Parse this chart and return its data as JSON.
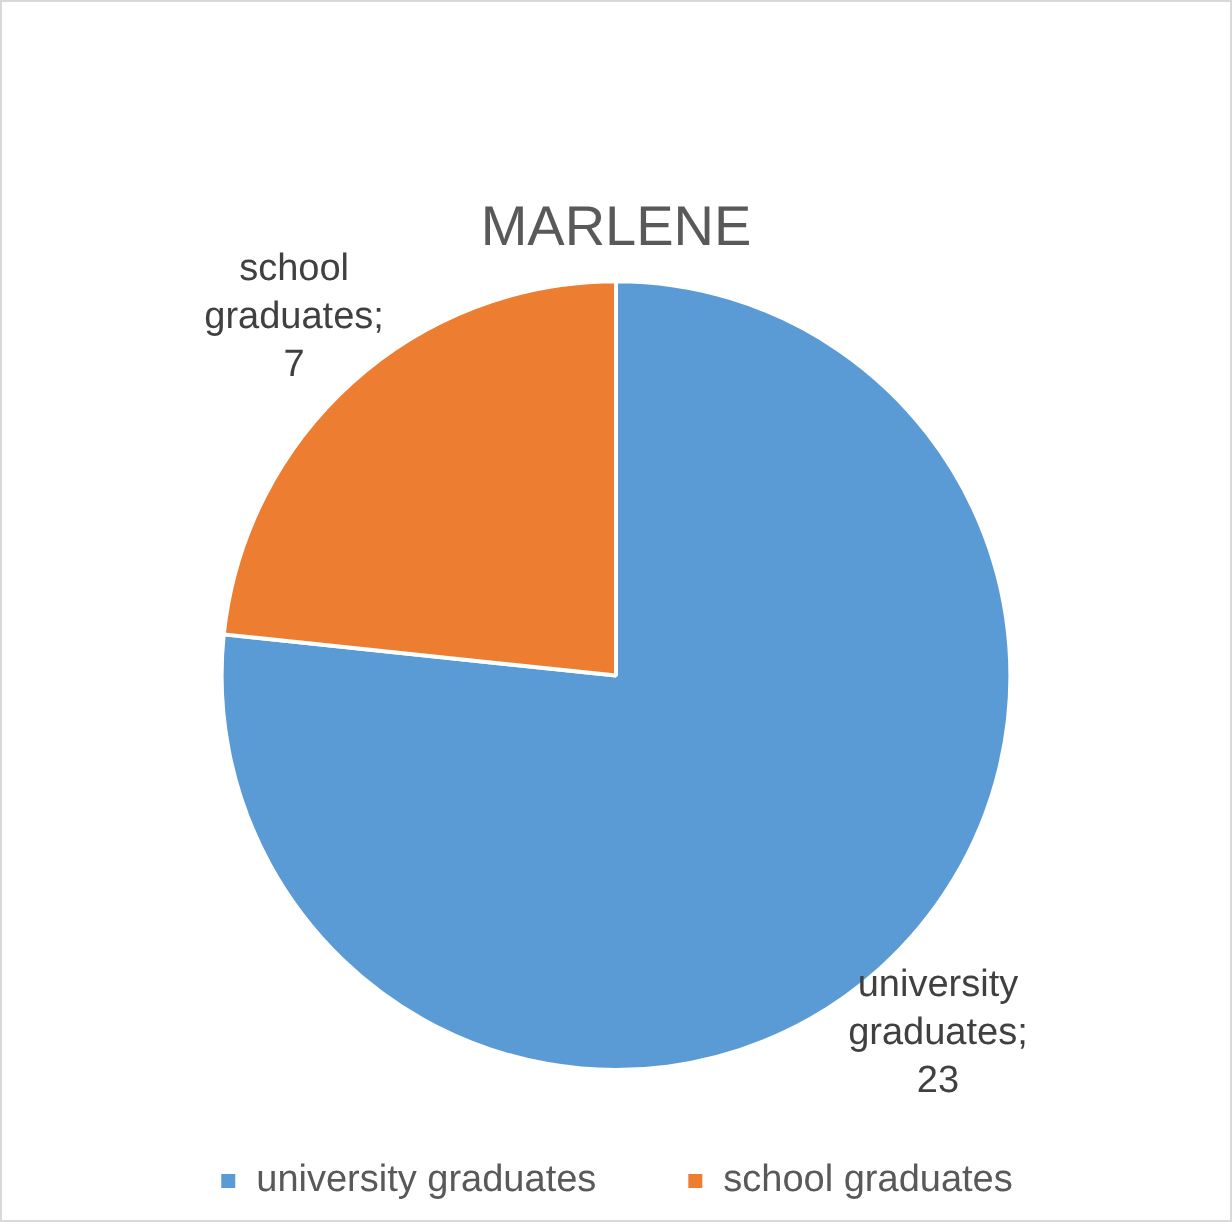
{
  "chart_data": {
    "type": "pie",
    "title": "MARLENE",
    "categories": [
      "university graduates",
      "school graduates"
    ],
    "values": [
      23,
      7
    ],
    "value_labels": [
      "university graduates; 23",
      "school graduates; 7"
    ],
    "colors": [
      "#5b9bd5",
      "#ed7d31"
    ],
    "legend": "bottom"
  }
}
